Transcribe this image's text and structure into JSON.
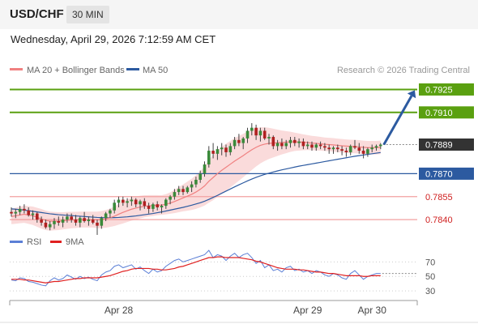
{
  "header": {
    "symbol": "USD/CHF",
    "timeframe": "30 MIN",
    "datetime": "Wednesday, April 29, 2026 7:12:59 AM CET"
  },
  "legend": {
    "ma20_label": "MA 20 + Bollinger Bands",
    "ma50_label": "MA 50",
    "credit": "Research © 2026 Trading Central",
    "ma20_color": "#f08080",
    "ma50_color": "#2c5aa0",
    "band_fill": "#fadbdb"
  },
  "rsi_legend": {
    "rsi_label": "RSI",
    "ma_label": "9MA",
    "rsi_color": "#5b7fd6",
    "ma_color": "#e02020"
  },
  "levels": [
    {
      "value": 0.7925,
      "label": "0.7925",
      "kind": "target",
      "color": "#5aa010"
    },
    {
      "value": 0.791,
      "label": "0.7910",
      "kind": "target",
      "color": "#5aa010"
    },
    {
      "value": 0.7889,
      "label": "0.7889",
      "kind": "last",
      "color": "#333333"
    },
    {
      "value": 0.787,
      "label": "0.7870",
      "kind": "pivot",
      "color": "#2c5aa0"
    },
    {
      "value": 0.7855,
      "label": "0.7855",
      "kind": "support",
      "color": "#d02020"
    },
    {
      "value": 0.784,
      "label": "0.7840",
      "kind": "support",
      "color": "#d02020"
    }
  ],
  "chart_data": {
    "type": "candlestick",
    "price_range": [
      0.783,
      0.793
    ],
    "candles": [
      [
        0.7845,
        0.7848,
        0.7842,
        0.7844
      ],
      [
        0.7844,
        0.7847,
        0.7841,
        0.7845
      ],
      [
        0.7845,
        0.7849,
        0.7843,
        0.7847
      ],
      [
        0.7847,
        0.785,
        0.7844,
        0.7846
      ],
      [
        0.7846,
        0.7848,
        0.7842,
        0.7843
      ],
      [
        0.7843,
        0.7846,
        0.784,
        0.7844
      ],
      [
        0.7844,
        0.7845,
        0.7838,
        0.784
      ],
      [
        0.784,
        0.7842,
        0.7836,
        0.7838
      ],
      [
        0.7838,
        0.784,
        0.7834,
        0.7835
      ],
      [
        0.7835,
        0.7839,
        0.7833,
        0.7837
      ],
      [
        0.7837,
        0.7841,
        0.7834,
        0.7839
      ],
      [
        0.7839,
        0.7842,
        0.7836,
        0.7838
      ],
      [
        0.7838,
        0.7842,
        0.7835,
        0.784
      ],
      [
        0.784,
        0.7844,
        0.7838,
        0.7842
      ],
      [
        0.7842,
        0.7844,
        0.7838,
        0.784
      ],
      [
        0.784,
        0.7843,
        0.7836,
        0.7838
      ],
      [
        0.7838,
        0.7842,
        0.7835,
        0.7841
      ],
      [
        0.7841,
        0.7845,
        0.7838,
        0.7839
      ],
      [
        0.7839,
        0.7842,
        0.7836,
        0.784
      ],
      [
        0.784,
        0.7843,
        0.7837,
        0.7838
      ],
      [
        0.7838,
        0.784,
        0.783,
        0.7836
      ],
      [
        0.7836,
        0.7842,
        0.7834,
        0.7841
      ],
      [
        0.7841,
        0.7845,
        0.7839,
        0.7844
      ],
      [
        0.7844,
        0.7847,
        0.7841,
        0.7846
      ],
      [
        0.7846,
        0.7853,
        0.7844,
        0.7851
      ],
      [
        0.7851,
        0.7855,
        0.7848,
        0.7853
      ],
      [
        0.7853,
        0.7855,
        0.7849,
        0.7851
      ],
      [
        0.7851,
        0.7854,
        0.7848,
        0.7852
      ],
      [
        0.7852,
        0.7855,
        0.7849,
        0.7853
      ],
      [
        0.7853,
        0.7854,
        0.7848,
        0.785
      ],
      [
        0.785,
        0.7853,
        0.7846,
        0.7852
      ],
      [
        0.7852,
        0.7854,
        0.7847,
        0.7849
      ],
      [
        0.7849,
        0.7851,
        0.7844,
        0.7847
      ],
      [
        0.7847,
        0.7851,
        0.7845,
        0.785
      ],
      [
        0.785,
        0.7852,
        0.7846,
        0.7848
      ],
      [
        0.7848,
        0.785,
        0.7844,
        0.7849
      ],
      [
        0.7849,
        0.7854,
        0.7847,
        0.7853
      ],
      [
        0.7853,
        0.7856,
        0.785,
        0.7855
      ],
      [
        0.7855,
        0.786,
        0.7853,
        0.7858
      ],
      [
        0.7858,
        0.7862,
        0.7856,
        0.786
      ],
      [
        0.786,
        0.7862,
        0.7856,
        0.7858
      ],
      [
        0.7858,
        0.7862,
        0.7857,
        0.7861
      ],
      [
        0.7861,
        0.7865,
        0.7858,
        0.7863
      ],
      [
        0.7863,
        0.7868,
        0.7861,
        0.7866
      ],
      [
        0.7866,
        0.7872,
        0.7864,
        0.787
      ],
      [
        0.787,
        0.7878,
        0.7868,
        0.7876
      ],
      [
        0.7876,
        0.7888,
        0.7874,
        0.7885
      ],
      [
        0.7885,
        0.789,
        0.788,
        0.7883
      ],
      [
        0.7883,
        0.7888,
        0.7879,
        0.7886
      ],
      [
        0.7886,
        0.789,
        0.7882,
        0.7887
      ],
      [
        0.7887,
        0.7889,
        0.7881,
        0.7884
      ],
      [
        0.7884,
        0.789,
        0.7882,
        0.7888
      ],
      [
        0.7888,
        0.7894,
        0.7886,
        0.7892
      ],
      [
        0.7892,
        0.7896,
        0.7888,
        0.789
      ],
      [
        0.789,
        0.7894,
        0.7886,
        0.7893
      ],
      [
        0.7893,
        0.79,
        0.789,
        0.7898
      ],
      [
        0.7898,
        0.7903,
        0.7895,
        0.79
      ],
      [
        0.79,
        0.7902,
        0.7892,
        0.7895
      ],
      [
        0.7895,
        0.79,
        0.7891,
        0.7898
      ],
      [
        0.7898,
        0.79,
        0.7892,
        0.7893
      ],
      [
        0.7893,
        0.7896,
        0.7889,
        0.7894
      ],
      [
        0.7894,
        0.7895,
        0.7886,
        0.7888
      ],
      [
        0.7888,
        0.7892,
        0.7885,
        0.789
      ],
      [
        0.789,
        0.7893,
        0.7886,
        0.7888
      ],
      [
        0.7888,
        0.7892,
        0.7886,
        0.789
      ],
      [
        0.789,
        0.7894,
        0.7887,
        0.7892
      ],
      [
        0.7892,
        0.7894,
        0.7888,
        0.789
      ],
      [
        0.789,
        0.7893,
        0.7887,
        0.7891
      ],
      [
        0.7891,
        0.7893,
        0.7886,
        0.7888
      ],
      [
        0.7888,
        0.7891,
        0.7886,
        0.7889
      ],
      [
        0.7889,
        0.7891,
        0.7885,
        0.7887
      ],
      [
        0.7887,
        0.789,
        0.7885,
        0.7889
      ],
      [
        0.7889,
        0.7891,
        0.7886,
        0.7888
      ],
      [
        0.7888,
        0.789,
        0.7885,
        0.7887
      ],
      [
        0.7887,
        0.7889,
        0.7883,
        0.7886
      ],
      [
        0.7886,
        0.7888,
        0.7883,
        0.7887
      ],
      [
        0.7887,
        0.7889,
        0.7884,
        0.7886
      ],
      [
        0.7886,
        0.7888,
        0.7882,
        0.7885
      ],
      [
        0.7885,
        0.7887,
        0.7881,
        0.7884
      ],
      [
        0.7884,
        0.7889,
        0.7882,
        0.7888
      ],
      [
        0.7888,
        0.7892,
        0.7886,
        0.7887
      ],
      [
        0.7887,
        0.789,
        0.7883,
        0.7885
      ],
      [
        0.7885,
        0.7888,
        0.788,
        0.7883
      ],
      [
        0.7883,
        0.7887,
        0.7881,
        0.7886
      ],
      [
        0.7886,
        0.7889,
        0.7884,
        0.7887
      ],
      [
        0.7887,
        0.7889,
        0.7885,
        0.7888
      ],
      [
        0.7888,
        0.789,
        0.7886,
        0.7889
      ]
    ],
    "ma20": [
      0.7842,
      0.78425,
      0.7843,
      0.78435,
      0.7843,
      0.78425,
      0.78415,
      0.78405,
      0.78395,
      0.7839,
      0.7839,
      0.7839,
      0.78392,
      0.78395,
      0.78397,
      0.78398,
      0.784,
      0.784,
      0.784,
      0.784,
      0.78398,
      0.784,
      0.78405,
      0.78412,
      0.78422,
      0.78435,
      0.78447,
      0.78458,
      0.78468,
      0.78475,
      0.78482,
      0.78487,
      0.7849,
      0.78492,
      0.78494,
      0.78495,
      0.785,
      0.78508,
      0.78518,
      0.7853,
      0.78542,
      0.78553,
      0.78565,
      0.7858,
      0.78598,
      0.7862,
      0.7865,
      0.78675,
      0.787,
      0.78722,
      0.78742,
      0.78762,
      0.78782,
      0.788,
      0.78818,
      0.78838,
      0.78856,
      0.78872,
      0.78885,
      0.78893,
      0.78898,
      0.789,
      0.78902,
      0.78904,
      0.78906,
      0.78908,
      0.78908,
      0.78907,
      0.78905,
      0.78903,
      0.789,
      0.78898,
      0.78895,
      0.78892,
      0.7889,
      0.78888,
      0.78885,
      0.78882,
      0.7888,
      0.78878,
      0.78877,
      0.78875,
      0.78872,
      0.7887,
      0.7887,
      0.7887,
      0.78872
    ],
    "ma50": [
      0.7847,
      0.78468,
      0.78465,
      0.78462,
      0.78458,
      0.78454,
      0.7845,
      0.78446,
      0.78442,
      0.78438,
      0.78435,
      0.78432,
      0.7843,
      0.78428,
      0.78426,
      0.78424,
      0.78422,
      0.7842,
      0.78418,
      0.78416,
      0.78414,
      0.78413,
      0.78412,
      0.78412,
      0.78413,
      0.78414,
      0.78416,
      0.78418,
      0.78421,
      0.78424,
      0.78428,
      0.78432,
      0.78436,
      0.7844,
      0.78445,
      0.7845,
      0.78456,
      0.78462,
      0.78468,
      0.78474,
      0.7848,
      0.78487,
      0.78494,
      0.78502,
      0.7851,
      0.7852,
      0.78532,
      0.78545,
      0.78558,
      0.78572,
      0.78586,
      0.786,
      0.78614,
      0.78627,
      0.7864,
      0.78653,
      0.78665,
      0.78676,
      0.78686,
      0.78695,
      0.78703,
      0.78711,
      0.78718,
      0.78725,
      0.78731,
      0.78737,
      0.78743,
      0.78749,
      0.78754,
      0.78759,
      0.78764,
      0.78769,
      0.78774,
      0.78779,
      0.78784,
      0.78789,
      0.78794,
      0.78799,
      0.78804,
      0.78809,
      0.78814,
      0.78818,
      0.78822,
      0.78826,
      0.7883,
      0.78834,
      0.78838
    ],
    "band_width": [
      0.0005,
      0.00052,
      0.00054,
      0.00056,
      0.00058,
      0.0006,
      0.00062,
      0.00064,
      0.00064,
      0.00062,
      0.0006,
      0.00058,
      0.00056,
      0.00055,
      0.00054,
      0.00053,
      0.00052,
      0.00052,
      0.00052,
      0.00052,
      0.00054,
      0.00056,
      0.00058,
      0.0006,
      0.00064,
      0.00068,
      0.00072,
      0.00074,
      0.00075,
      0.00075,
      0.00074,
      0.00072,
      0.0007,
      0.00068,
      0.00066,
      0.00064,
      0.00066,
      0.0007,
      0.00076,
      0.00082,
      0.00088,
      0.00095,
      0.00102,
      0.0011,
      0.00118,
      0.00128,
      0.0014,
      0.00148,
      0.00152,
      0.00154,
      0.00154,
      0.00152,
      0.0015,
      0.00146,
      0.00142,
      0.00138,
      0.00132,
      0.00125,
      0.00118,
      0.0011,
      0.00102,
      0.00094,
      0.00086,
      0.00078,
      0.00072,
      0.00066,
      0.0006,
      0.00056,
      0.00052,
      0.00049,
      0.00047,
      0.00046,
      0.00045,
      0.00044,
      0.00044,
      0.00044,
      0.00044,
      0.00044,
      0.00044,
      0.00044,
      0.00044,
      0.00044,
      0.00044,
      0.00044,
      0.00044,
      0.00044,
      0.00044
    ],
    "projection": {
      "from": 0.7889,
      "to": 0.7924
    },
    "rsi_ticks": [
      {
        "value": 70,
        "label": "70"
      },
      {
        "value": 50,
        "label": "50"
      },
      {
        "value": 30,
        "label": "30"
      }
    ],
    "rsi_range": [
      20,
      85
    ],
    "rsi": [
      45,
      44,
      48,
      47,
      43,
      42,
      40,
      38,
      37,
      44,
      48,
      45,
      47,
      52,
      49,
      46,
      50,
      47,
      49,
      46,
      44,
      52,
      56,
      58,
      64,
      66,
      62,
      64,
      66,
      60,
      63,
      58,
      54,
      60,
      56,
      58,
      64,
      68,
      72,
      74,
      70,
      72,
      74,
      76,
      78,
      80,
      86,
      76,
      80,
      78,
      72,
      78,
      82,
      76,
      80,
      82,
      76,
      68,
      72,
      62,
      66,
      58,
      60,
      56,
      62,
      64,
      58,
      60,
      56,
      58,
      54,
      58,
      56,
      52,
      50,
      54,
      52,
      48,
      46,
      54,
      58,
      52,
      46,
      50,
      52,
      54,
      54
    ],
    "rsi_ma": [
      46,
      46,
      46,
      45,
      45,
      44,
      43,
      42,
      41,
      42,
      43,
      43,
      44,
      45,
      46,
      47,
      47,
      48,
      48,
      48,
      48,
      49,
      50,
      51,
      53,
      55,
      57,
      58,
      60,
      61,
      61,
      61,
      61,
      60,
      60,
      59,
      59,
      60,
      61,
      63,
      64,
      66,
      68,
      70,
      72,
      74,
      76,
      76,
      77,
      77,
      76,
      76,
      76,
      76,
      75,
      74,
      73,
      71,
      70,
      68,
      66,
      64,
      62,
      61,
      60,
      60,
      60,
      59,
      59,
      58,
      57,
      56,
      56,
      55,
      54,
      54,
      53,
      52,
      51,
      51,
      51,
      51,
      50,
      50,
      51,
      51,
      51
    ],
    "x_labels": [
      {
        "index": 25,
        "label": "Apr 28"
      },
      {
        "index": 69,
        "label": "Apr 29"
      },
      {
        "index": 84,
        "label": "Apr 30"
      }
    ]
  }
}
